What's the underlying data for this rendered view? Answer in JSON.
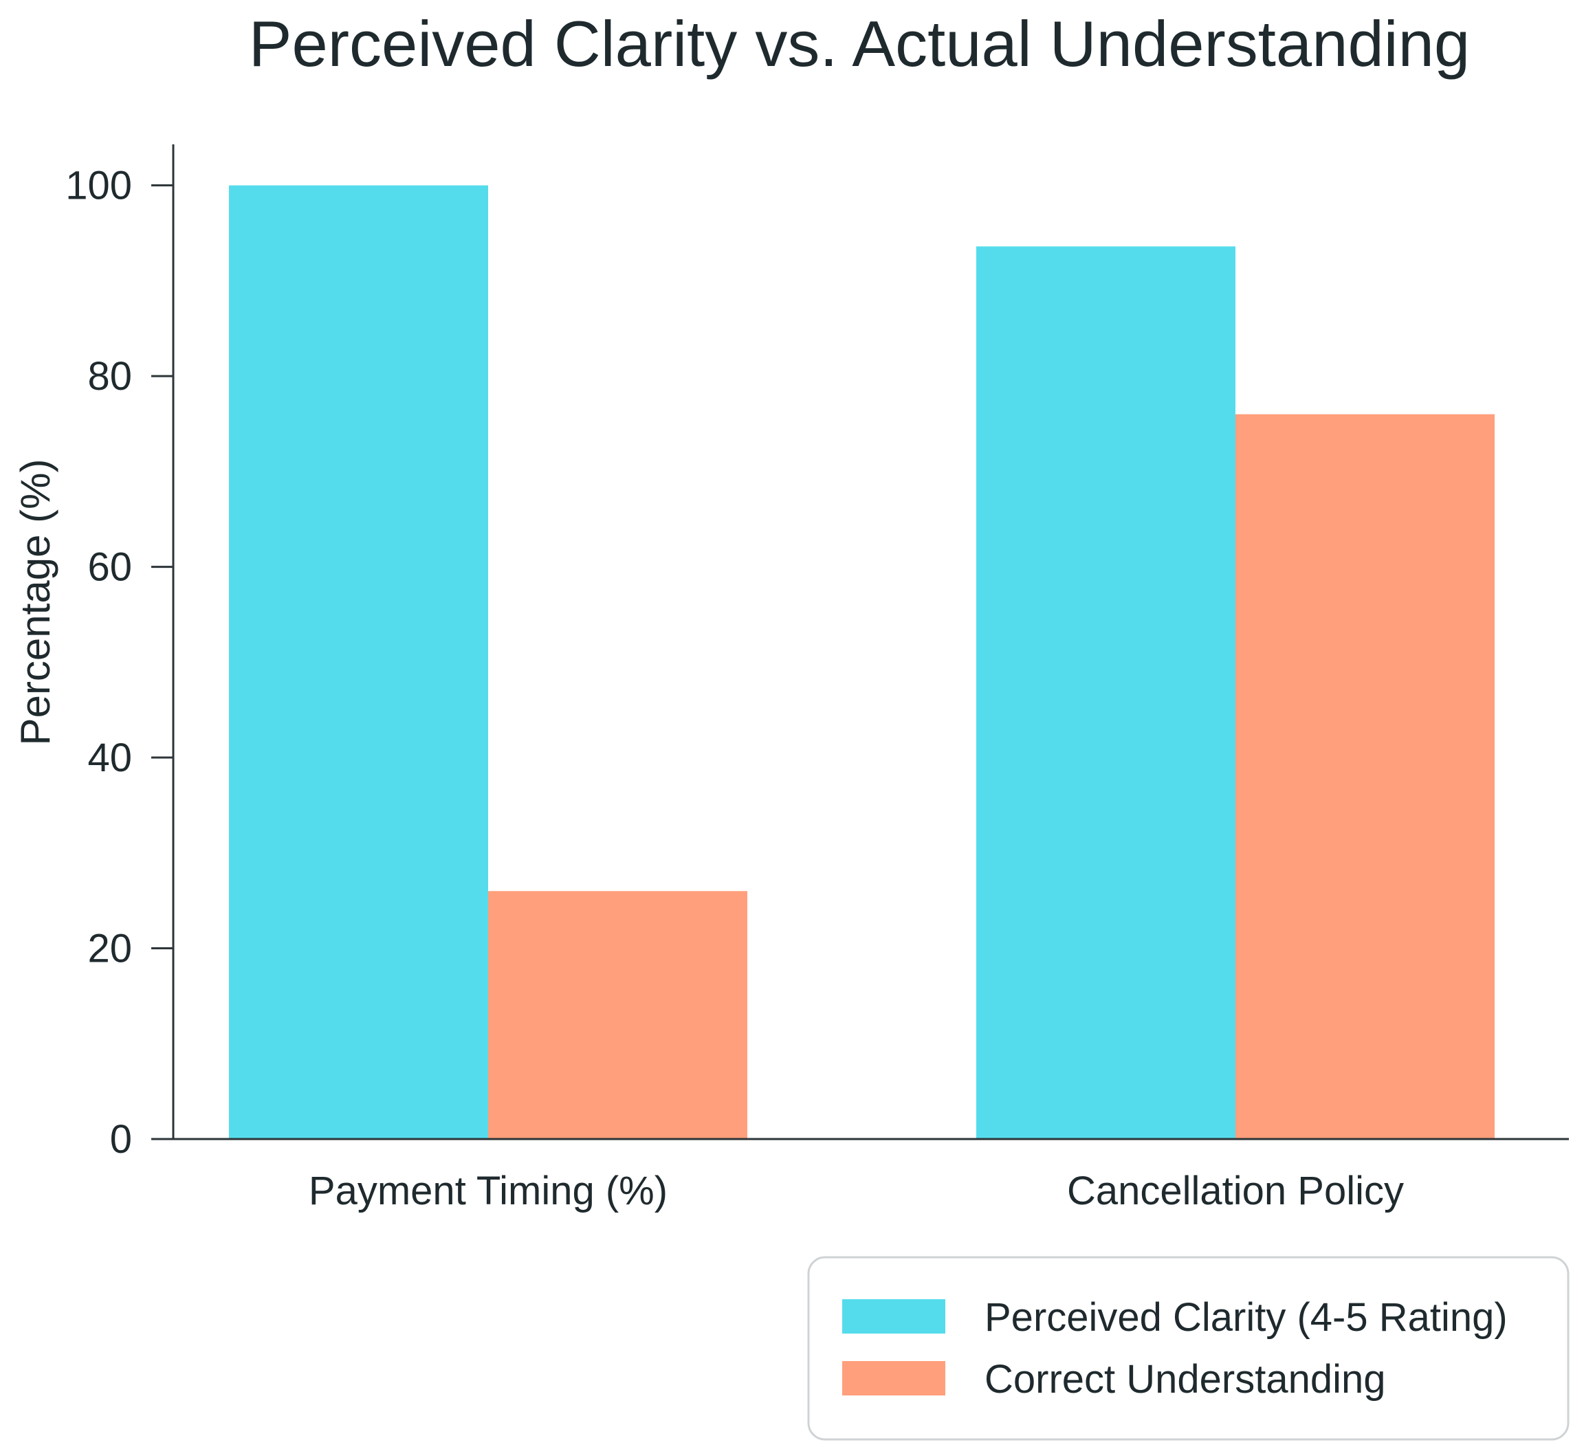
{
  "chart_data": {
    "type": "bar",
    "title": "Perceived Clarity vs. Actual Understanding",
    "xlabel": "",
    "ylabel": "Percentage (%)",
    "categories": [
      "Payment Timing (%)",
      "Cancellation Policy"
    ],
    "series": [
      {
        "name": "Perceived Clarity (4-5 Rating)",
        "color": "#55dcec",
        "values": [
          100,
          93.6
        ]
      },
      {
        "name": "Correct Understanding",
        "color": "#ff9f7b",
        "values": [
          26,
          76
        ]
      }
    ],
    "ylim": [
      0,
      104.3
    ],
    "yticks": [
      0,
      20,
      40,
      60,
      80,
      100
    ],
    "ytick_labels": [
      "0",
      "20",
      "40",
      "60",
      "80",
      "100"
    ],
    "grid": false,
    "legend_position": "bottom-right"
  }
}
